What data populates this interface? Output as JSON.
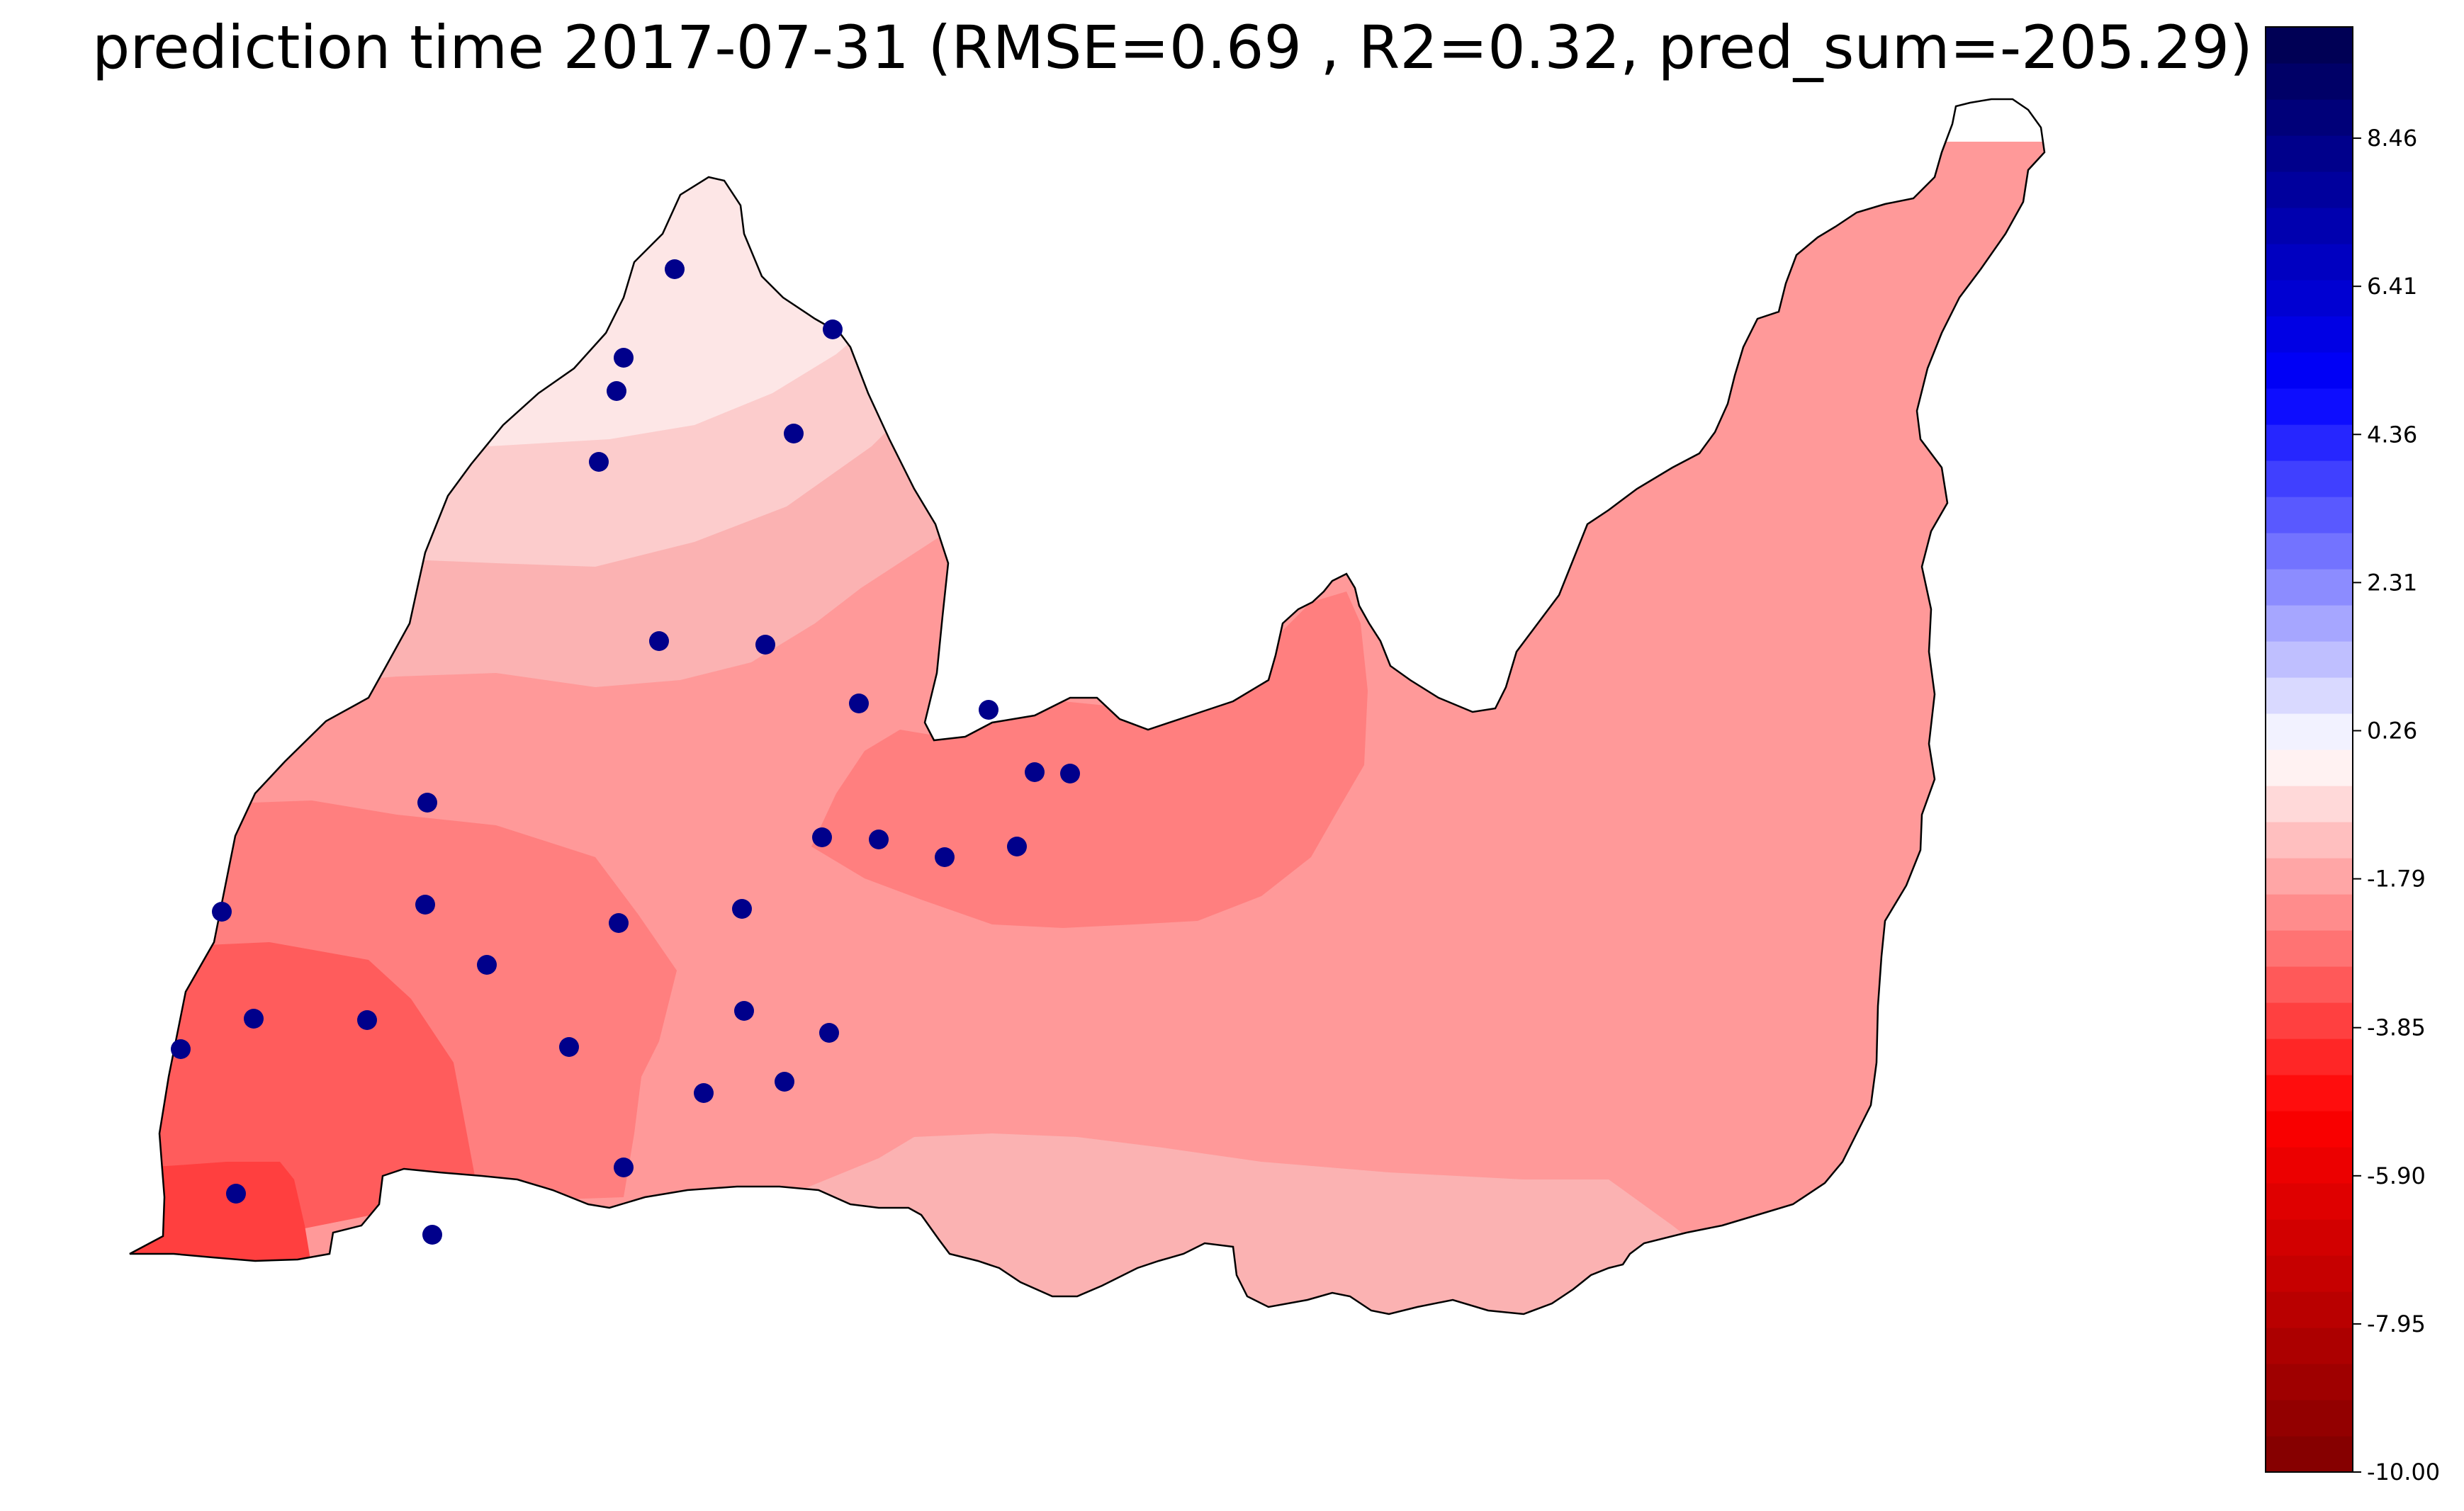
{
  "chart_data": {
    "type": "heatmap",
    "title": "prediction time 2017-07-31 (RMSE=0.69 , R2=0.32, pred_sum=-205.29)",
    "colorbar": {
      "min": -10.0,
      "max": 10.0,
      "ticks": [
        -10.0,
        -7.95,
        -5.9,
        -3.85,
        -1.79,
        0.26,
        2.31,
        4.36,
        6.41,
        8.46
      ],
      "tick_labels": [
        "-10.00",
        "-7.95",
        "-5.90",
        "-3.85",
        "-1.79",
        "0.26",
        "2.31",
        "4.36",
        "6.41",
        "8.46"
      ],
      "colormap": "seismic_r",
      "levels": 40
    },
    "contour_bands": [
      {
        "level": 0.26,
        "color": "#fde6e6"
      },
      {
        "level": -0.25,
        "color": "#fccccc"
      },
      {
        "level": -0.77,
        "color": "#fbb2b2"
      },
      {
        "level": -1.28,
        "color": "#ff9999"
      },
      {
        "level": -2.3,
        "color": "#ff7f7f"
      },
      {
        "level": -3.33,
        "color": "#ff5c5c"
      },
      {
        "level": -3.85,
        "color": "#ff3f3f"
      }
    ],
    "stations_color": "#00008b",
    "station_count": 33
  }
}
